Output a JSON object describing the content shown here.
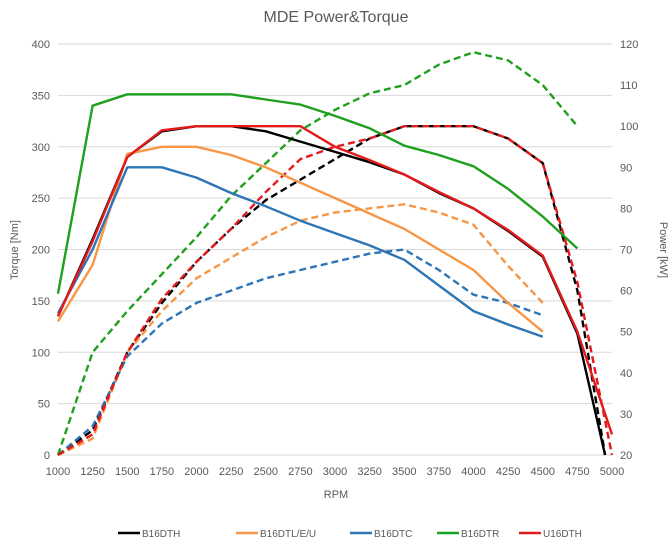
{
  "chart_data": {
    "type": "line",
    "title": "MDE Power&Torque",
    "xlabel": "RPM",
    "ylabel_left": "Torque [Nm]",
    "ylabel_right": "Power [kW]",
    "x_ticks": [
      1000,
      1250,
      1500,
      1750,
      2000,
      2250,
      2500,
      2750,
      3000,
      3250,
      3500,
      3750,
      4000,
      4250,
      4500,
      4750,
      5000
    ],
    "y_left_ticks": [
      0,
      50,
      100,
      150,
      200,
      250,
      300,
      350,
      400
    ],
    "y_right_ticks": [
      20,
      30,
      40,
      50,
      60,
      70,
      80,
      90,
      100,
      110,
      120
    ],
    "xlim": [
      1000,
      5000
    ],
    "ylim_left": [
      0,
      400
    ],
    "ylim_right": [
      20,
      120
    ],
    "grid": "horizontal",
    "legend_position": "bottom",
    "torque_series": [
      {
        "name": "B16DTH",
        "color": "#000000",
        "x": [
          1000,
          1250,
          1500,
          1750,
          2000,
          2250,
          2500,
          2750,
          3000,
          3250,
          3500,
          3750,
          4000,
          4250,
          4500,
          4750,
          4950
        ],
        "values": [
          135,
          210,
          290,
          315,
          320,
          320,
          315,
          305,
          295,
          285,
          273,
          255,
          240,
          218,
          193,
          118,
          0
        ]
      },
      {
        "name": "B16DTL/E/U",
        "color": "#F79646",
        "x": [
          1000,
          1250,
          1500,
          1750,
          2000,
          2250,
          2500,
          2750,
          3000,
          3250,
          3500,
          3750,
          4000,
          4250,
          4500
        ],
        "values": [
          130,
          185,
          293,
          300,
          300,
          292,
          280,
          265,
          250,
          235,
          220,
          200,
          180,
          148,
          120
        ]
      },
      {
        "name": "B16DTC",
        "color": "#2E75B6",
        "x": [
          1000,
          1250,
          1500,
          1750,
          2000,
          2250,
          2500,
          2750,
          3000,
          3250,
          3500,
          3750,
          4000,
          4250,
          4500
        ],
        "values": [
          138,
          200,
          280,
          280,
          270,
          255,
          242,
          228,
          216,
          204,
          190,
          165,
          140,
          127,
          115
        ]
      },
      {
        "name": "B16DTR",
        "color": "#1FA01F",
        "x": [
          1000,
          1250,
          1500,
          1750,
          2000,
          2250,
          2500,
          2750,
          3000,
          3250,
          3500,
          3750,
          4000,
          4250,
          4500,
          4750
        ],
        "values": [
          157,
          340,
          351,
          351,
          351,
          351,
          346,
          341,
          330,
          318,
          301,
          292,
          281,
          259,
          232,
          201
        ]
      },
      {
        "name": "U16DTH",
        "color": "#E41A1C",
        "x": [
          1000,
          1250,
          1500,
          1750,
          2000,
          2250,
          2500,
          2750,
          3000,
          3250,
          3500,
          3750,
          4000,
          4250,
          4500,
          4750,
          5000
        ],
        "values": [
          135,
          208,
          290,
          316,
          320,
          320,
          320,
          320,
          300,
          287,
          273,
          256,
          240,
          219,
          194,
          120,
          20
        ]
      }
    ],
    "power_series": [
      {
        "name": "B16DTH",
        "color": "#000000",
        "x": [
          1000,
          1250,
          1500,
          1750,
          2000,
          2250,
          2500,
          2750,
          3000,
          3250,
          3500,
          3750,
          4000,
          4250,
          4500,
          4750,
          4950
        ],
        "values": [
          20,
          26,
          45,
          57,
          67,
          75,
          82,
          87,
          92,
          97,
          100,
          100,
          100,
          97,
          91,
          60,
          20
        ]
      },
      {
        "name": "B16DTL/E/U",
        "color": "#F79646",
        "x": [
          1000,
          1250,
          1500,
          1750,
          2000,
          2250,
          2500,
          2750,
          3000,
          3250,
          3500,
          3750,
          4000,
          4250,
          4500
        ],
        "values": [
          20,
          24,
          45,
          55,
          63,
          68,
          73,
          77,
          79,
          80,
          81,
          79,
          76,
          66,
          57
        ]
      },
      {
        "name": "B16DTC",
        "color": "#2E75B6",
        "x": [
          1000,
          1250,
          1500,
          1750,
          2000,
          2250,
          2500,
          2750,
          3000,
          3250,
          3500,
          3750,
          4000,
          4250,
          4500
        ],
        "values": [
          20,
          27,
          44,
          52,
          57,
          60,
          63,
          65,
          67,
          69,
          70,
          65,
          59,
          57,
          54
        ]
      },
      {
        "name": "B16DTR",
        "color": "#1FA01F",
        "x": [
          1000,
          1250,
          1500,
          1750,
          2000,
          2250,
          2500,
          2750,
          3000,
          3250,
          3500,
          3750,
          4000,
          4250,
          4500,
          4750
        ],
        "values": [
          20,
          45,
          55,
          64,
          73,
          83,
          91,
          99,
          104,
          108,
          110,
          115,
          118,
          116,
          110,
          100
        ]
      },
      {
        "name": "U16DTH",
        "color": "#E41A1C",
        "x": [
          1000,
          1250,
          1500,
          1750,
          2000,
          2250,
          2500,
          2750,
          3000,
          3250,
          3500,
          3750,
          4000,
          4250,
          4500,
          4750,
          5000
        ],
        "values": [
          20,
          25,
          45,
          58,
          67,
          75,
          84,
          92,
          95,
          97,
          100,
          100,
          100,
          97,
          91,
          62,
          20
        ]
      }
    ],
    "legend": [
      "B16DTH",
      "B16DTL/E/U",
      "B16DTC",
      "B16DTR",
      "U16DTH"
    ]
  }
}
